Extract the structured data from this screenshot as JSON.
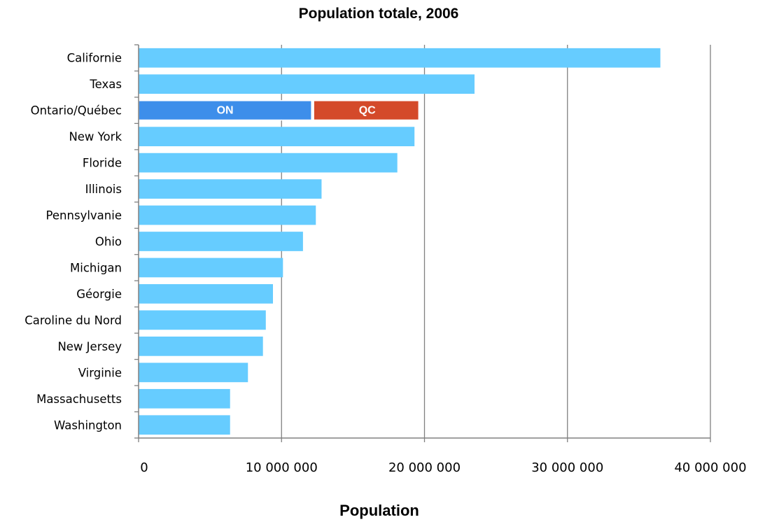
{
  "chart_data": {
    "type": "bar",
    "orientation": "horizontal",
    "title": "Population totale, 2006",
    "xlabel": "Population",
    "ylabel": "",
    "xlim": [
      0,
      40000000
    ],
    "x_ticks": [
      0,
      10000000,
      20000000,
      30000000,
      40000000
    ],
    "x_tick_labels": [
      "0",
      "10 000 000",
      "20 000 000",
      "30 000 000",
      "40 000 000"
    ],
    "grid": "vertical",
    "categories": [
      "Californie",
      "Texas",
      "Ontario/Québec",
      "New York",
      "Floride",
      "Illinois",
      "Pennsylvanie",
      "Ohio",
      "Michigan",
      "Géorgie",
      "Caroline du Nord",
      "New Jersey",
      "Virginie",
      "Massachusetts",
      "Washington"
    ],
    "values": [
      36500000,
      23500000,
      19600000,
      19300000,
      18100000,
      12800000,
      12400000,
      11500000,
      10100000,
      9400000,
      8900000,
      8700000,
      7650000,
      6400000,
      6400000
    ],
    "stacked_segments": [
      {
        "category": "Ontario/Québec",
        "segments": [
          {
            "label": "ON",
            "value": 12100000,
            "color": "#3d8eea"
          },
          {
            "label": "QC",
            "value": 7500000,
            "color": "#d44a2a"
          }
        ]
      }
    ],
    "colors": {
      "bar": "#66ccff",
      "grid": "#808080",
      "axis": "#808080"
    }
  }
}
